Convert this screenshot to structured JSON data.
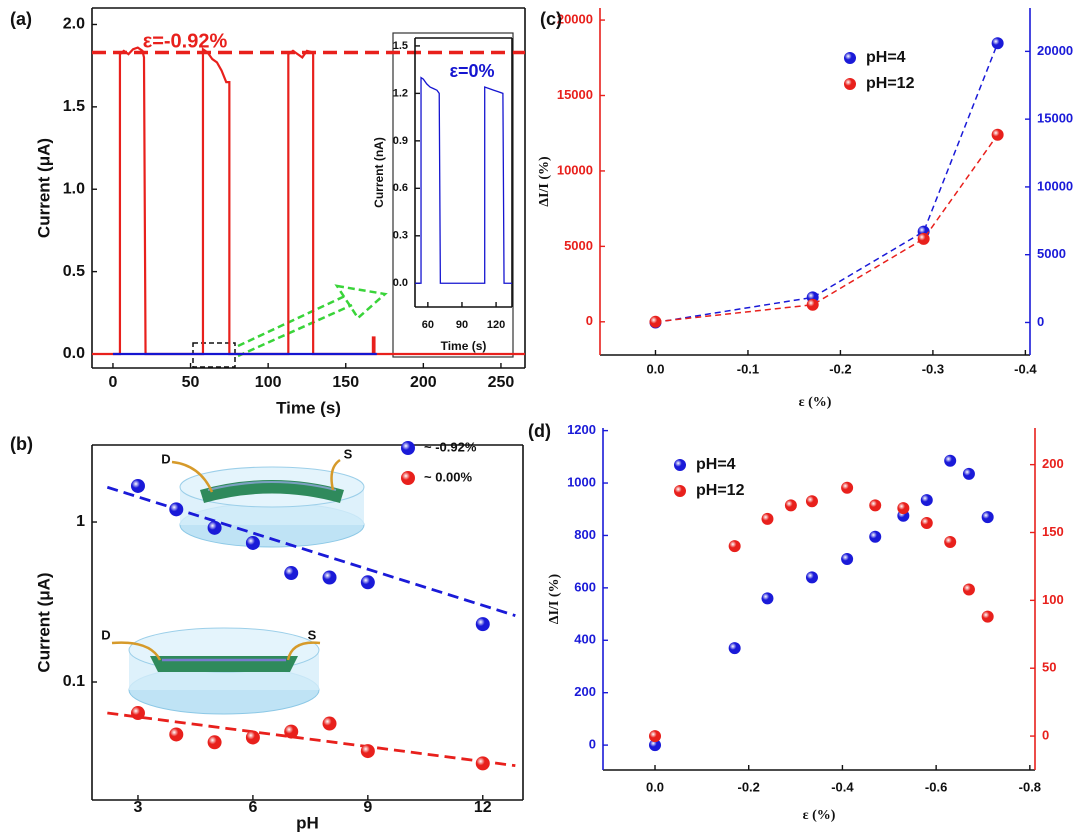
{
  "chart_data": [
    {
      "type": "line",
      "panel_label": "(a)",
      "xlabel": "Time (s)",
      "ylabel": "Current (μA)",
      "annotation": "ε=-0.92%",
      "reference_line": 1.83,
      "xlim": [
        -13.5,
        265.5
      ],
      "xticks": [
        0,
        50,
        100,
        150,
        200,
        250
      ],
      "ylim": [
        -0.085,
        2.1
      ],
      "yticks": [
        {
          "value": 0,
          "label": "0.0"
        },
        {
          "value": 0.5,
          "label": "0.5"
        },
        {
          "value": 1,
          "label": "1.0"
        },
        {
          "value": 1.5,
          "label": "1.5"
        },
        {
          "value": 2,
          "label": "2.0"
        }
      ],
      "series": [
        {
          "color": "#e8201c",
          "x": [
            -13.5,
            4.5,
            4.5,
            7,
            10,
            13,
            16,
            19,
            20,
            21,
            58,
            58,
            61,
            64,
            67,
            70,
            73,
            75,
            75,
            113,
            113,
            116,
            119,
            122,
            125,
            129,
            129,
            167.5,
            167.5,
            168.5,
            168.5,
            265.5
          ],
          "values": [
            0,
            0,
            1.82,
            1.84,
            1.82,
            1.85,
            1.86,
            1.84,
            1.8,
            0,
            0,
            1.85,
            1.83,
            1.79,
            1.77,
            1.72,
            1.65,
            1.65,
            0,
            0,
            1.82,
            1.84,
            1.82,
            1.8,
            1.84,
            1.83,
            0,
            0,
            0.1,
            0.1,
            0,
            0
          ]
        },
        {
          "color": "#1515d0",
          "x": [
            0,
            170
          ],
          "values": [
            0,
            0
          ]
        }
      ]
    },
    {
      "type": "line",
      "xlabel": "Time (s)",
      "ylabel": "Current (nA)",
      "annotation": "ε=0%",
      "xlim": [
        48.7,
        134
      ],
      "xticks": [
        60,
        90,
        120
      ],
      "ylim": [
        -0.15,
        1.55
      ],
      "yticks": [
        {
          "value": 0,
          "label": "0.0"
        },
        {
          "value": 0.3,
          "label": "0.3"
        },
        {
          "value": 0.6,
          "label": "0.6"
        },
        {
          "value": 0.9,
          "label": "0.9"
        },
        {
          "value": 1.2,
          "label": "1.2"
        },
        {
          "value": 1.5,
          "label": "1.5"
        }
      ],
      "series": [
        {
          "color": "#1515d0",
          "x": [
            48.7,
            54,
            54,
            56,
            59,
            62,
            65,
            68,
            70,
            71,
            110,
            110,
            114,
            118,
            122,
            126,
            127,
            134
          ],
          "values": [
            0,
            0,
            1.3,
            1.29,
            1.26,
            1.24,
            1.23,
            1.22,
            1.2,
            0,
            0,
            1.24,
            1.23,
            1.22,
            1.21,
            1.2,
            0,
            0
          ]
        }
      ]
    },
    {
      "type": "scatter",
      "panel_label": "(b)",
      "xlabel": "pH",
      "ylabel": "Current (μA)",
      "log_y": true,
      "legend": "upper right",
      "annotations": [
        "D",
        "S",
        "D",
        "S"
      ],
      "xlim": [
        1.8,
        13.05
      ],
      "xticks": [
        3,
        6,
        9,
        12
      ],
      "ylim": [
        0.0183,
        3.03
      ],
      "yticks": [
        0.1,
        1
      ],
      "series": [
        {
          "name": "~ -0.92%",
          "color": "#1a1ad8",
          "x": [
            3,
            4,
            5,
            6,
            7,
            8,
            9,
            12
          ],
          "values": [
            1.68,
            1.2,
            0.92,
            0.74,
            0.48,
            0.45,
            0.42,
            0.23
          ],
          "fit": {
            "x": [
              2.2,
              12.85
            ],
            "values": [
              1.65,
              0.26
            ]
          }
        },
        {
          "name": "~ 0.00%",
          "color": "#e8201c",
          "x": [
            3,
            4,
            5,
            6,
            7,
            8,
            9,
            12
          ],
          "values": [
            0.064,
            0.047,
            0.042,
            0.045,
            0.049,
            0.055,
            0.037,
            0.031
          ],
          "fit": {
            "x": [
              2.2,
              12.85
            ],
            "values": [
              0.064,
              0.03
            ]
          }
        }
      ]
    },
    {
      "type": "scatter",
      "panel_label": "(c)",
      "xlabel": "ε (%)",
      "ylabel": "ΔI/I (%)",
      "legend": "upper center",
      "connect": "dashed",
      "axis_colors": {
        "y": "#e8201c",
        "y2": "#1a1ad8"
      },
      "xlim": [
        0.06,
        -0.405
      ],
      "xticks": [
        {
          "value": 0,
          "label": "0.0"
        },
        -0.1,
        -0.2,
        -0.3,
        -0.4
      ],
      "ylim": [
        -2200,
        20800
      ],
      "yticks": [
        0,
        5000,
        10000,
        15000,
        20000
      ],
      "y2lim": [
        -2400,
        23200
      ],
      "y2ticks": [
        0,
        5000,
        10000,
        15000,
        20000
      ],
      "series": [
        {
          "name": "pH=4",
          "color": "#1a1ad8",
          "axis": "y2",
          "x": [
            0,
            -0.17,
            -0.29,
            -0.37
          ],
          "values": [
            0,
            1850,
            6700,
            20600
          ]
        },
        {
          "name": "pH=12",
          "color": "#e8201c",
          "x": [
            0,
            -0.17,
            -0.29,
            -0.37
          ],
          "values": [
            0,
            1130,
            5500,
            12400
          ]
        }
      ]
    },
    {
      "type": "scatter",
      "panel_label": "(d)",
      "xlabel": "ε (%)",
      "ylabel": "ΔI/I (%)",
      "legend": "upper left",
      "axis_colors": {
        "y": "#1a1ad8",
        "y2": "#e8201c"
      },
      "xlim": [
        0.111,
        -0.811
      ],
      "xticks": [
        {
          "value": 0,
          "label": "0.0"
        },
        -0.2,
        -0.4,
        -0.6,
        -0.8
      ],
      "ylim": [
        -95,
        1210
      ],
      "yticks": [
        0,
        200,
        400,
        600,
        800,
        1000,
        1200
      ],
      "y2lim": [
        -25,
        227
      ],
      "y2ticks": [
        0,
        50,
        100,
        150,
        200
      ],
      "series": [
        {
          "name": "pH=4",
          "color": "#1a1ad8",
          "x": [
            0,
            -0.17,
            -0.24,
            -0.335,
            -0.41,
            -0.47,
            -0.53,
            -0.58,
            -0.63,
            -0.67,
            -0.71
          ],
          "values": [
            0,
            370,
            560,
            640,
            710,
            795,
            875,
            935,
            1085,
            1035,
            870
          ]
        },
        {
          "name": "pH=12",
          "color": "#e8201c",
          "axis": "y2",
          "x": [
            0,
            -0.17,
            -0.24,
            -0.29,
            -0.335,
            -0.41,
            -0.47,
            -0.53,
            -0.58,
            -0.63,
            -0.67,
            -0.71
          ],
          "values": [
            0,
            140,
            160,
            170,
            173,
            183,
            170,
            168,
            157,
            143,
            108,
            88
          ]
        }
      ]
    }
  ]
}
